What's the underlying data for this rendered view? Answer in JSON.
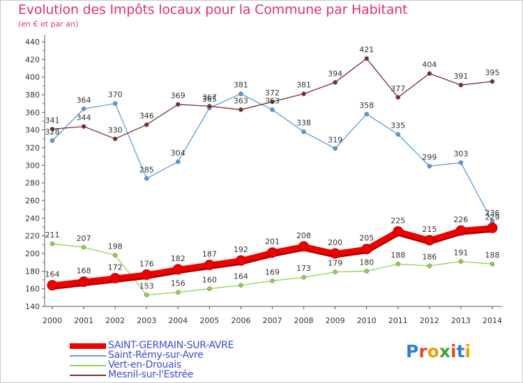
{
  "header": {
    "title": "Evolution des Impôts locaux pour la Commune par Habitant",
    "subtitle": "(en € et par an)"
  },
  "logo": {
    "text": "Proxiti",
    "letter_colors": [
      "#2f7fd6",
      "#e04b2f",
      "#f0a000",
      "#3aa63a",
      "#e04b2f",
      "#2f7fd6",
      "#f0a000"
    ]
  },
  "chart_data": {
    "type": "line",
    "title": "Evolution des Impôts locaux pour la Commune par Habitant",
    "ylabel": "(en € et par an)",
    "ylim": [
      140,
      440
    ],
    "yticks": [
      140,
      160,
      180,
      200,
      220,
      240,
      260,
      280,
      300,
      320,
      340,
      360,
      380,
      400,
      420,
      440
    ],
    "grid": false,
    "legend_position": "bottom-left",
    "categories": [
      "2000",
      "2001",
      "2002",
      "2003",
      "2004",
      "2005",
      "2006",
      "2007",
      "2008",
      "2009",
      "2010",
      "2011",
      "2012",
      "2013",
      "2014"
    ],
    "series": [
      {
        "name": "SAINT-GERMAIN-SUR-AVRE",
        "color": "#ee0000",
        "thick": true,
        "values": [
          164,
          168,
          172,
          176,
          182,
          187,
          192,
          201,
          208,
          200,
          205,
          225,
          215,
          226,
          229
        ],
        "labels": [
          "164",
          "168",
          "172",
          "176",
          "182",
          "187",
          "192",
          "201",
          "208",
          "200",
          "205",
          "225",
          "215",
          "226",
          "229"
        ]
      },
      {
        "name": "Saint-Rémy-sur-Avre",
        "color": "#5b9bd5",
        "thick": false,
        "values": [
          328,
          364,
          370,
          285,
          304,
          365,
          381,
          363,
          338,
          319,
          358,
          335,
          299,
          303,
          236
        ],
        "labels": [
          "328",
          "364",
          "370",
          "285",
          "304",
          "365",
          "381",
          "363",
          "338",
          "319",
          "358",
          "335",
          "299",
          "303",
          "236"
        ]
      },
      {
        "name": "Vert-en-Drouais",
        "color": "#8fd14f",
        "thick": false,
        "values": [
          211,
          207,
          198,
          153,
          156,
          160,
          164,
          169,
          173,
          179,
          180,
          188,
          186,
          191,
          188
        ],
        "labels": [
          "211",
          "207",
          "198",
          "153",
          "156",
          "160",
          "164",
          "169",
          "173",
          "179",
          "180",
          "188",
          "186",
          "191",
          "188"
        ]
      },
      {
        "name": "Mesnil-sur-l'Estrée",
        "color": "#7b2c2c",
        "thick": false,
        "values": [
          341,
          344,
          330,
          346,
          369,
          367,
          363,
          372,
          381,
          394,
          421,
          377,
          404,
          391,
          395
        ],
        "labels": [
          "341",
          "344",
          "330",
          "346",
          "369",
          "367",
          "363",
          "372",
          "381",
          "394",
          "421",
          "377",
          "404",
          "391",
          "395"
        ]
      }
    ]
  }
}
